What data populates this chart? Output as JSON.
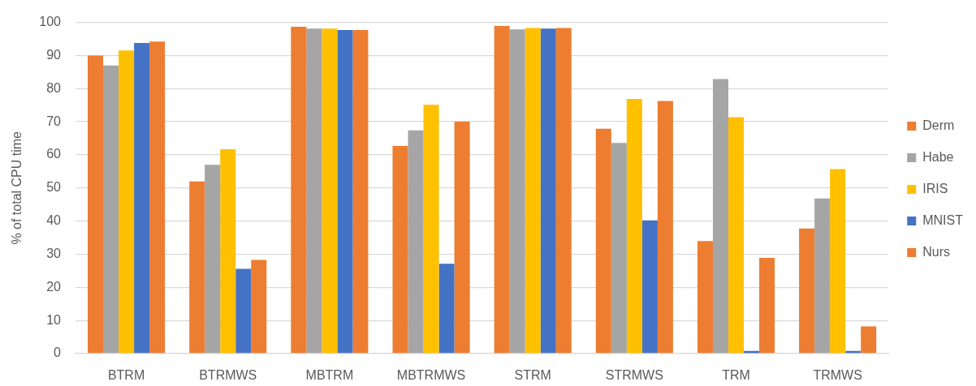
{
  "chart_data": {
    "type": "bar",
    "ylabel": "% of total CPU time",
    "categories": [
      "BTRM",
      "BTRMWS",
      "MBTRM",
      "MBTRMWS",
      "STRM",
      "STRMWS",
      "TRM",
      "TRMWS"
    ],
    "series": [
      {
        "name": "Derm",
        "color": "#ed7d31",
        "values": [
          90,
          52,
          98.7,
          62.7,
          98.9,
          67.9,
          34,
          37.8
        ]
      },
      {
        "name": "Habe",
        "color": "#a5a5a5",
        "values": [
          87,
          57,
          98.1,
          67.4,
          97.9,
          63.6,
          82.9,
          46.8
        ]
      },
      {
        "name": "IRIS",
        "color": "#ffc000",
        "values": [
          91.5,
          61.7,
          98.1,
          75.1,
          98.3,
          76.9,
          71.4,
          55.7
        ]
      },
      {
        "name": "MNIST",
        "color": "#4472c4",
        "values": [
          93.8,
          25.6,
          97.7,
          27.1,
          98.1,
          40.2,
          0.8,
          0.8
        ]
      },
      {
        "name": "Nurs",
        "color": "#ed7d31",
        "values": [
          94.2,
          28.3,
          97.7,
          70,
          98.3,
          76.3,
          28.9,
          8.2
        ]
      }
    ],
    "ylim": [
      0,
      100
    ],
    "yticks": [
      0,
      10,
      20,
      30,
      40,
      50,
      60,
      70,
      80,
      90,
      100
    ],
    "grid": "y",
    "legend": "right"
  }
}
